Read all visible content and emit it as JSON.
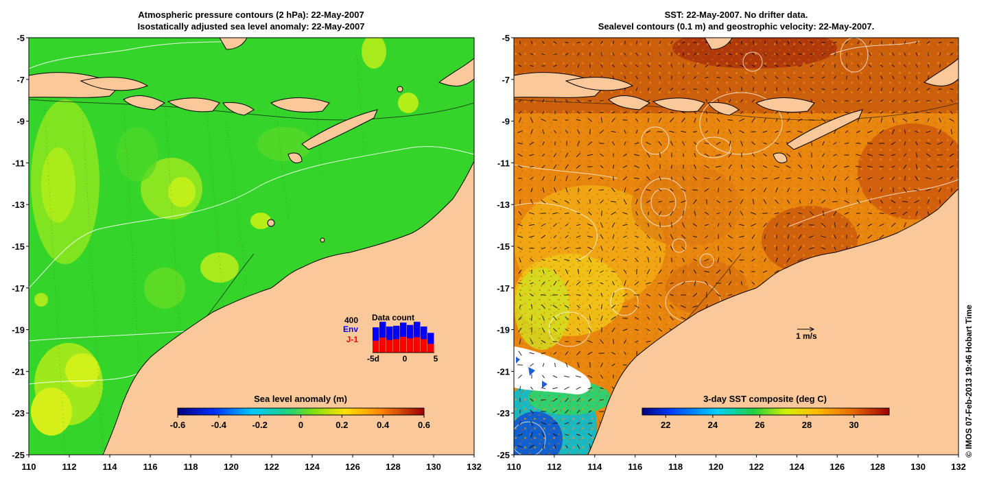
{
  "left_panel": {
    "title_line1": "Atmospheric pressure contours (2 hPa): 22-May-2007",
    "title_line2": "Isostatically adjusted sea level anomaly: 22-May-2007",
    "colorbar": {
      "title": "Sea level anomaly (m)",
      "ticks": [
        "-0.6",
        "-0.4",
        "-0.2",
        "0",
        "0.2",
        "0.4",
        "0.6"
      ],
      "range": [
        -0.6,
        0.6
      ]
    },
    "inset": {
      "title": "Data count",
      "max_label": "400",
      "series_env": "Env",
      "series_j1": "J-1",
      "x_labels": [
        "-5d",
        "0",
        "5"
      ],
      "env_values": [
        320,
        390,
        330,
        340,
        380,
        350,
        390,
        330,
        250
      ],
      "j1_values": [
        150,
        190,
        160,
        170,
        200,
        180,
        195,
        170,
        110
      ],
      "colors": {
        "env": "#0000ff",
        "j1": "#ff0000"
      }
    }
  },
  "right_panel": {
    "title_line1": "SST: 22-May-2007. No drifter data.",
    "title_line2": "Sealevel contours (0.1 m) and geostrophic velocity: 22-May-2007.",
    "colorbar": {
      "title": "3-day SST composite (deg C)",
      "ticks": [
        "22",
        "24",
        "26",
        "28",
        "30"
      ],
      "range": [
        21,
        31.5
      ]
    },
    "scale_label": "1 m/s"
  },
  "axes": {
    "x_ticks": [
      "110",
      "112",
      "114",
      "116",
      "118",
      "120",
      "122",
      "124",
      "126",
      "128",
      "130",
      "132"
    ],
    "y_ticks": [
      "-5",
      "-7",
      "-9",
      "-11",
      "-13",
      "-15",
      "-17",
      "-19",
      "-21",
      "-23",
      "-25"
    ],
    "lon_range": [
      110,
      132
    ],
    "lat_range": [
      -25,
      -5
    ]
  },
  "credit": "© IMOS 07-Feb-2013 19:46 Hobart Time",
  "colors": {
    "land": "#fbc89a",
    "sla_base": "#35d42a",
    "sst_base": "#e8860e"
  }
}
